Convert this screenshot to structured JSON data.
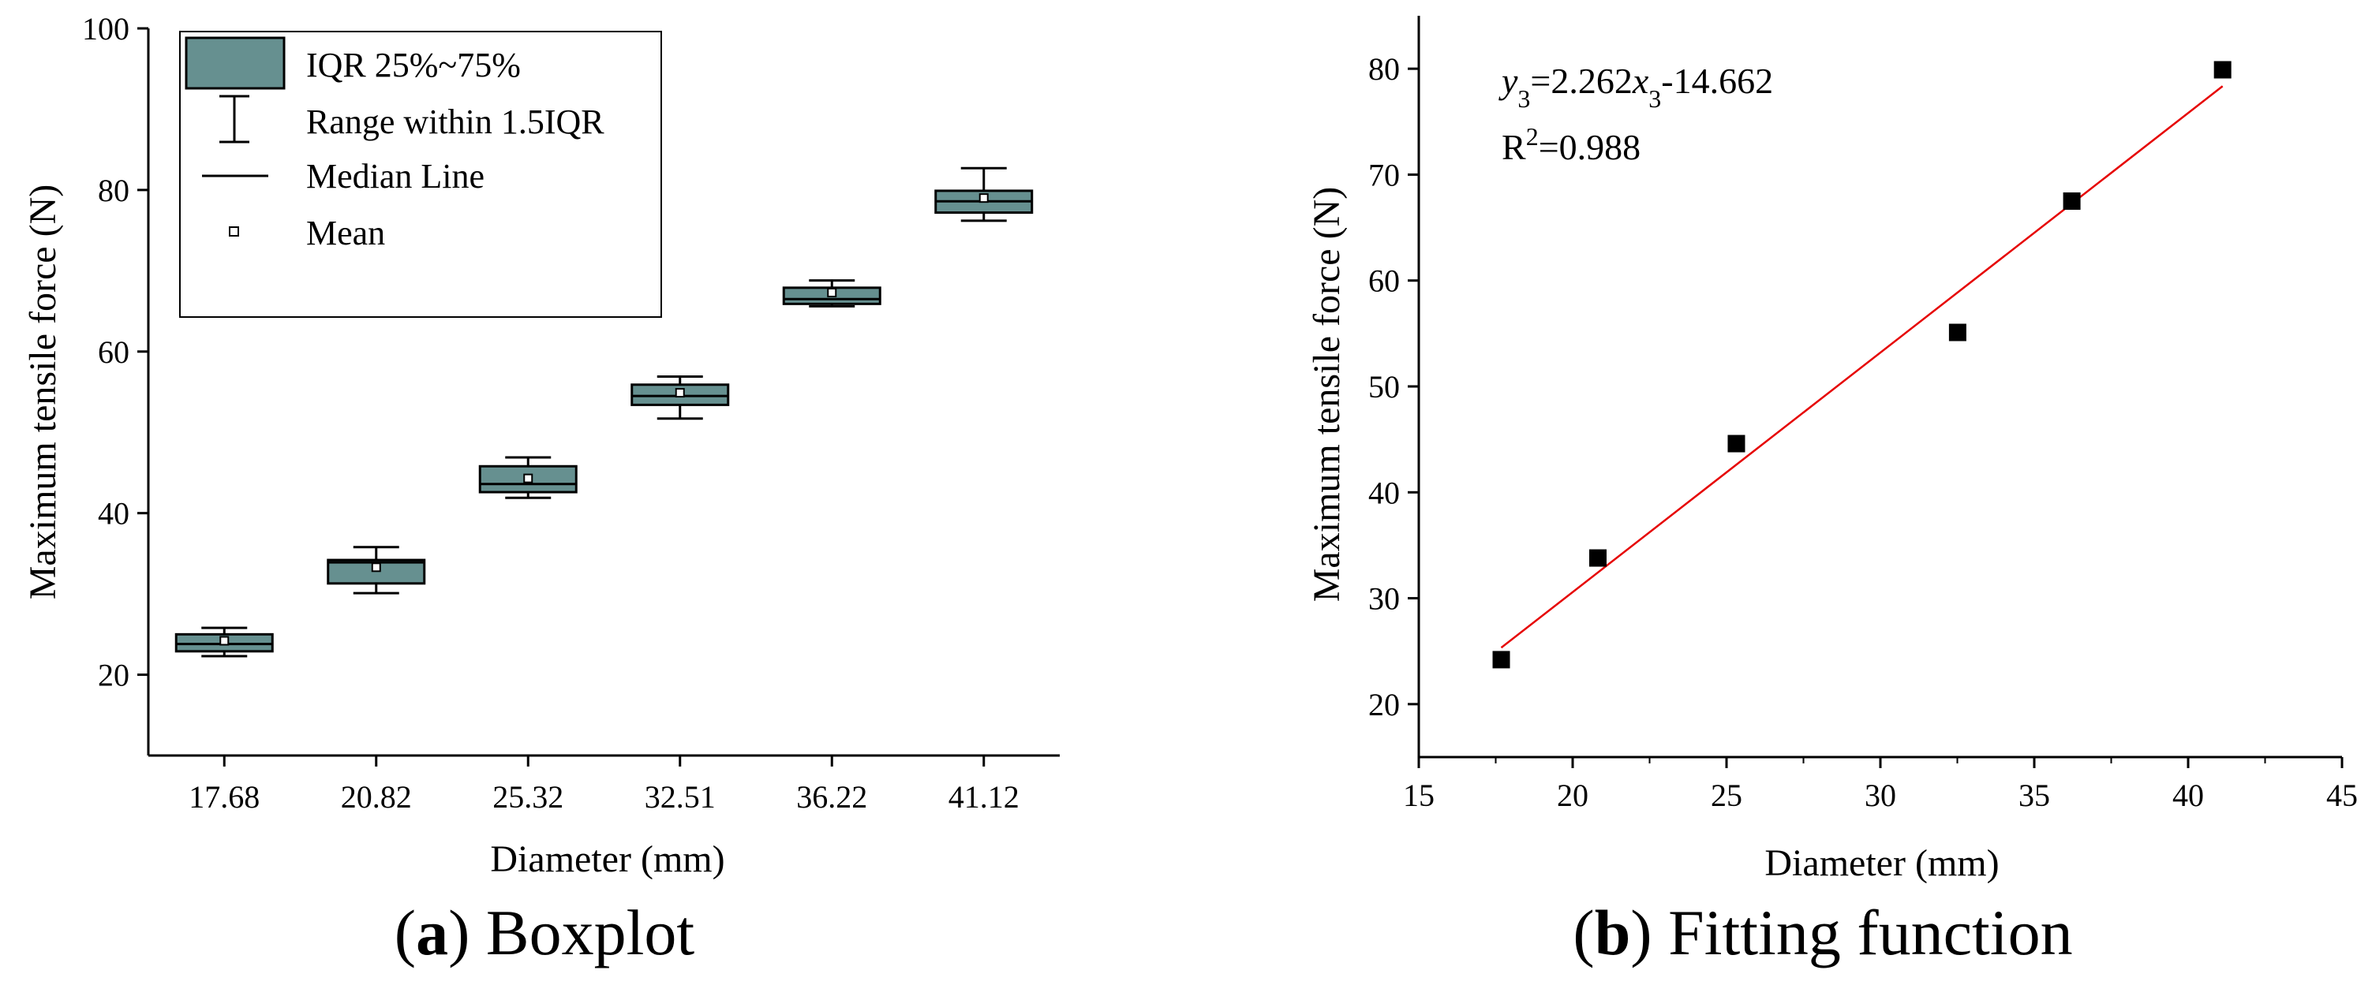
{
  "colors": {
    "box_fill": "#669090",
    "fit_line": "#e60000",
    "marker": "#000000"
  },
  "chart_data": [
    {
      "type": "boxplot",
      "caption_letter": "a",
      "caption_text": "Boxplot",
      "xlabel": "Diameter (mm)",
      "ylabel": "Maximum tensile force (N)",
      "ylim": [
        10,
        100
      ],
      "yticks": [
        20,
        40,
        60,
        80,
        100
      ],
      "categories": [
        "17.68",
        "20.82",
        "25.32",
        "32.51",
        "36.22",
        "41.12"
      ],
      "boxes": [
        {
          "min": 22.3,
          "q1": 22.9,
          "median": 23.8,
          "q3": 25.0,
          "max": 25.8,
          "mean": 24.2
        },
        {
          "min": 30.1,
          "q1": 31.3,
          "median": 33.9,
          "q3": 34.2,
          "max": 35.8,
          "mean": 33.3
        },
        {
          "min": 41.9,
          "q1": 42.6,
          "median": 43.6,
          "q3": 45.8,
          "max": 46.9,
          "mean": 44.3
        },
        {
          "min": 51.7,
          "q1": 53.4,
          "median": 54.5,
          "q3": 55.9,
          "max": 56.9,
          "mean": 54.9
        },
        {
          "min": 65.6,
          "q1": 65.9,
          "median": 66.5,
          "q3": 67.9,
          "max": 68.8,
          "mean": 67.3
        },
        {
          "min": 76.2,
          "q1": 77.2,
          "median": 78.6,
          "q3": 79.9,
          "max": 82.7,
          "mean": 79.0
        }
      ],
      "legend": [
        {
          "key": "box",
          "label": "IQR 25%~75%"
        },
        {
          "key": "whisker",
          "label": "Range within 1.5IQR"
        },
        {
          "key": "median",
          "label": "Median Line"
        },
        {
          "key": "mean",
          "label": "Mean"
        }
      ]
    },
    {
      "type": "scatter",
      "caption_letter": "b",
      "caption_text": "Fitting function",
      "xlabel": "Diameter (mm)",
      "ylabel": "Maximum tensile force (N)",
      "xlim": [
        15,
        45
      ],
      "ylim": [
        15,
        85
      ],
      "xticks": [
        15,
        20,
        25,
        30,
        35,
        40,
        45
      ],
      "yticks": [
        20,
        30,
        40,
        50,
        60,
        70,
        80
      ],
      "x": [
        17.68,
        20.82,
        25.32,
        32.51,
        36.22,
        41.12
      ],
      "y": [
        24.2,
        33.8,
        44.6,
        55.1,
        67.5,
        79.9
      ],
      "fit": {
        "slope": 2.262,
        "intercept": -14.662,
        "x_range": [
          17.68,
          41.12
        ]
      },
      "equation": {
        "y_var": "y",
        "x_var": "x",
        "sub": "3",
        "eq": "=2.262",
        "rest": "-14.662"
      },
      "r2": {
        "r": "R",
        "sup": "2",
        "value": "=0.988"
      }
    }
  ]
}
